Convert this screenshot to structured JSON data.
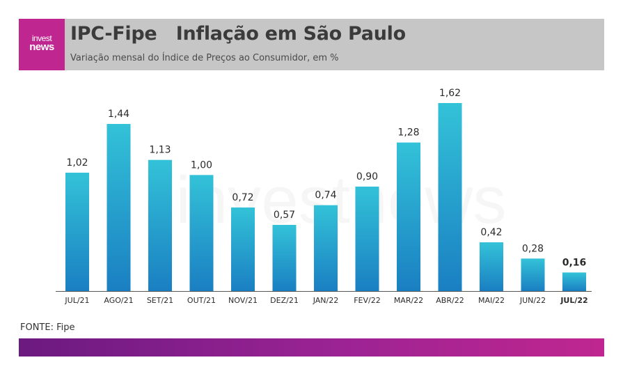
{
  "header": {
    "logo_line1": "invest",
    "logo_line2": "news",
    "title": "IPC-Fipe   Inflação em São Paulo",
    "subtitle": "Variação mensal do Índice de Preços ao Consumidor, em %"
  },
  "watermark": "investnews",
  "source": "FONTE: Fipe",
  "colors": {
    "bar_top": "#33c2d8",
    "bar_bottom": "#1a7fc2",
    "brand": "#c0268f",
    "header_bg": "#c6c6c6"
  },
  "chart_data": {
    "type": "bar",
    "categories": [
      "JUL/21",
      "AGO/21",
      "SET/21",
      "OUT/21",
      "NOV/21",
      "DEZ/21",
      "JAN/22",
      "FEV/22",
      "MAR/22",
      "ABR/22",
      "MAI/22",
      "JUN/22",
      "JUL/22"
    ],
    "values": [
      1.02,
      1.44,
      1.13,
      1.0,
      0.72,
      0.57,
      0.74,
      0.9,
      1.28,
      1.62,
      0.42,
      0.28,
      0.16
    ],
    "labels": [
      "1,02",
      "1,44",
      "1,13",
      "1,00",
      "0,72",
      "0,57",
      "0,74",
      "0,90",
      "1,28",
      "1,62",
      "0,42",
      "0,28",
      "0,16"
    ],
    "highlight_index": 12,
    "title": "",
    "xlabel": "",
    "ylabel": "",
    "ylim": [
      0,
      1.62
    ],
    "grid": false,
    "legend": "none"
  }
}
